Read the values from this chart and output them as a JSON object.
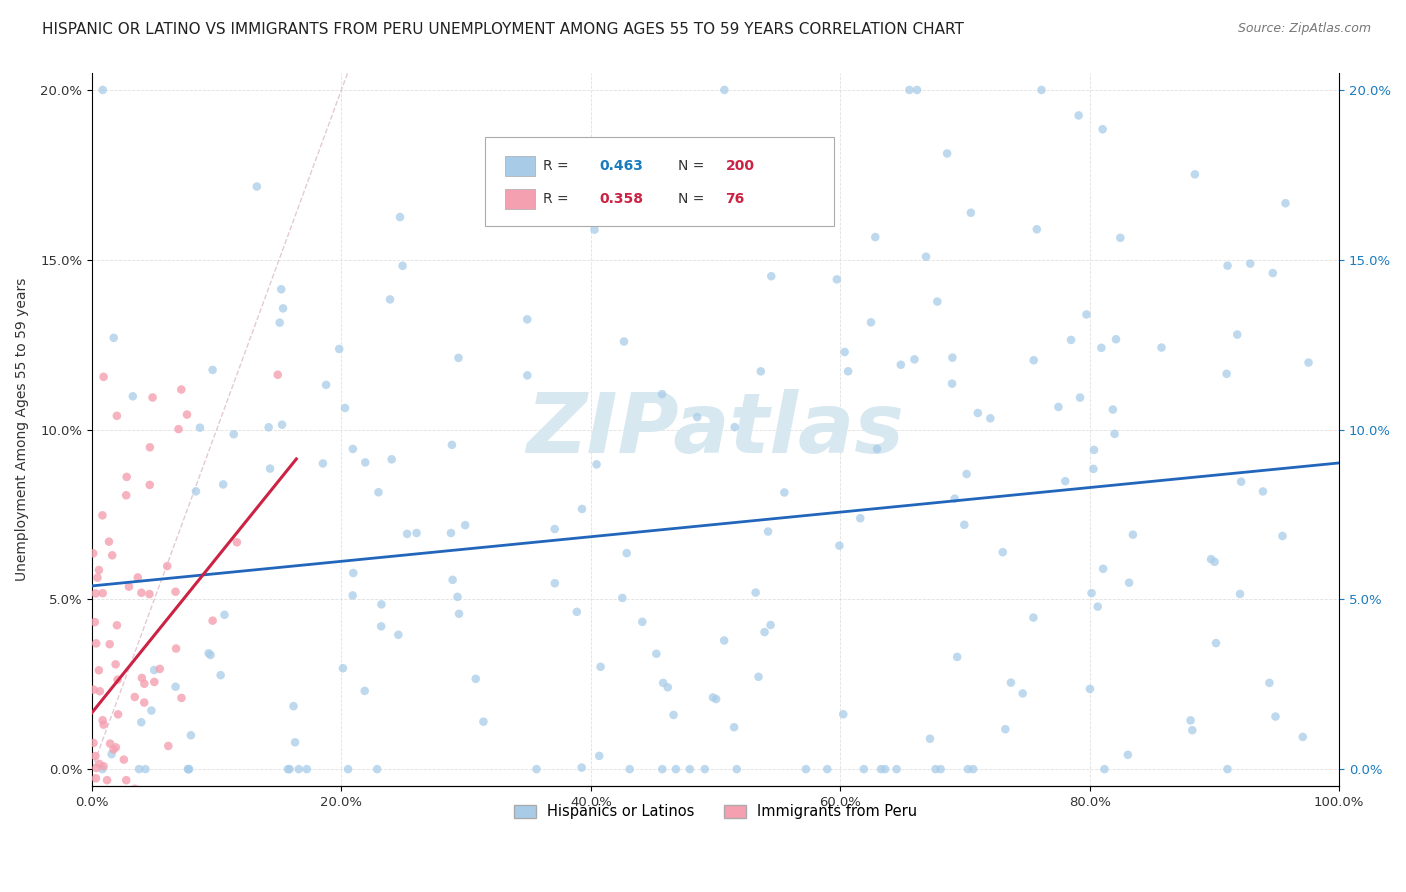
{
  "title": "HISPANIC OR LATINO VS IMMIGRANTS FROM PERU UNEMPLOYMENT AMONG AGES 55 TO 59 YEARS CORRELATION CHART",
  "source": "Source: ZipAtlas.com",
  "xlabel": "",
  "ylabel": "Unemployment Among Ages 55 to 59 years",
  "xlim": [
    0,
    1.0
  ],
  "ylim": [
    -0.005,
    0.205
  ],
  "xticks": [
    0.0,
    0.2,
    0.4,
    0.6,
    0.8,
    1.0
  ],
  "yticks": [
    0.0,
    0.05,
    0.1,
    0.15,
    0.2
  ],
  "xtick_labels": [
    "0.0%",
    "20.0%",
    "40.0%",
    "60.0%",
    "80.0%",
    "100.0%"
  ],
  "ytick_labels": [
    "0.0%",
    "5.0%",
    "10.0%",
    "15.0%",
    "20.0%"
  ],
  "series1_label": "Hispanics or Latinos",
  "series2_label": "Immigrants from Peru",
  "series1_color": "#a8cce8",
  "series2_color": "#f4a0b0",
  "series1_line_color": "#2266bb",
  "series2_line_color": "#cc2244",
  "series2_dash_color": "#ddaacc",
  "series1_R": 0.463,
  "series1_N": 200,
  "series2_R": 0.358,
  "series2_N": 76,
  "watermark": "ZIPatlas",
  "watermark_color": "#d8e8f0",
  "background_color": "#ffffff",
  "title_fontsize": 11,
  "legend_box_color": "#1a7bbf",
  "legend_R1_color": "#1a7bbf",
  "legend_R2_color": "#cc2244",
  "legend_N_color": "#cc2244",
  "right_tick_color": "#1a7bbf"
}
